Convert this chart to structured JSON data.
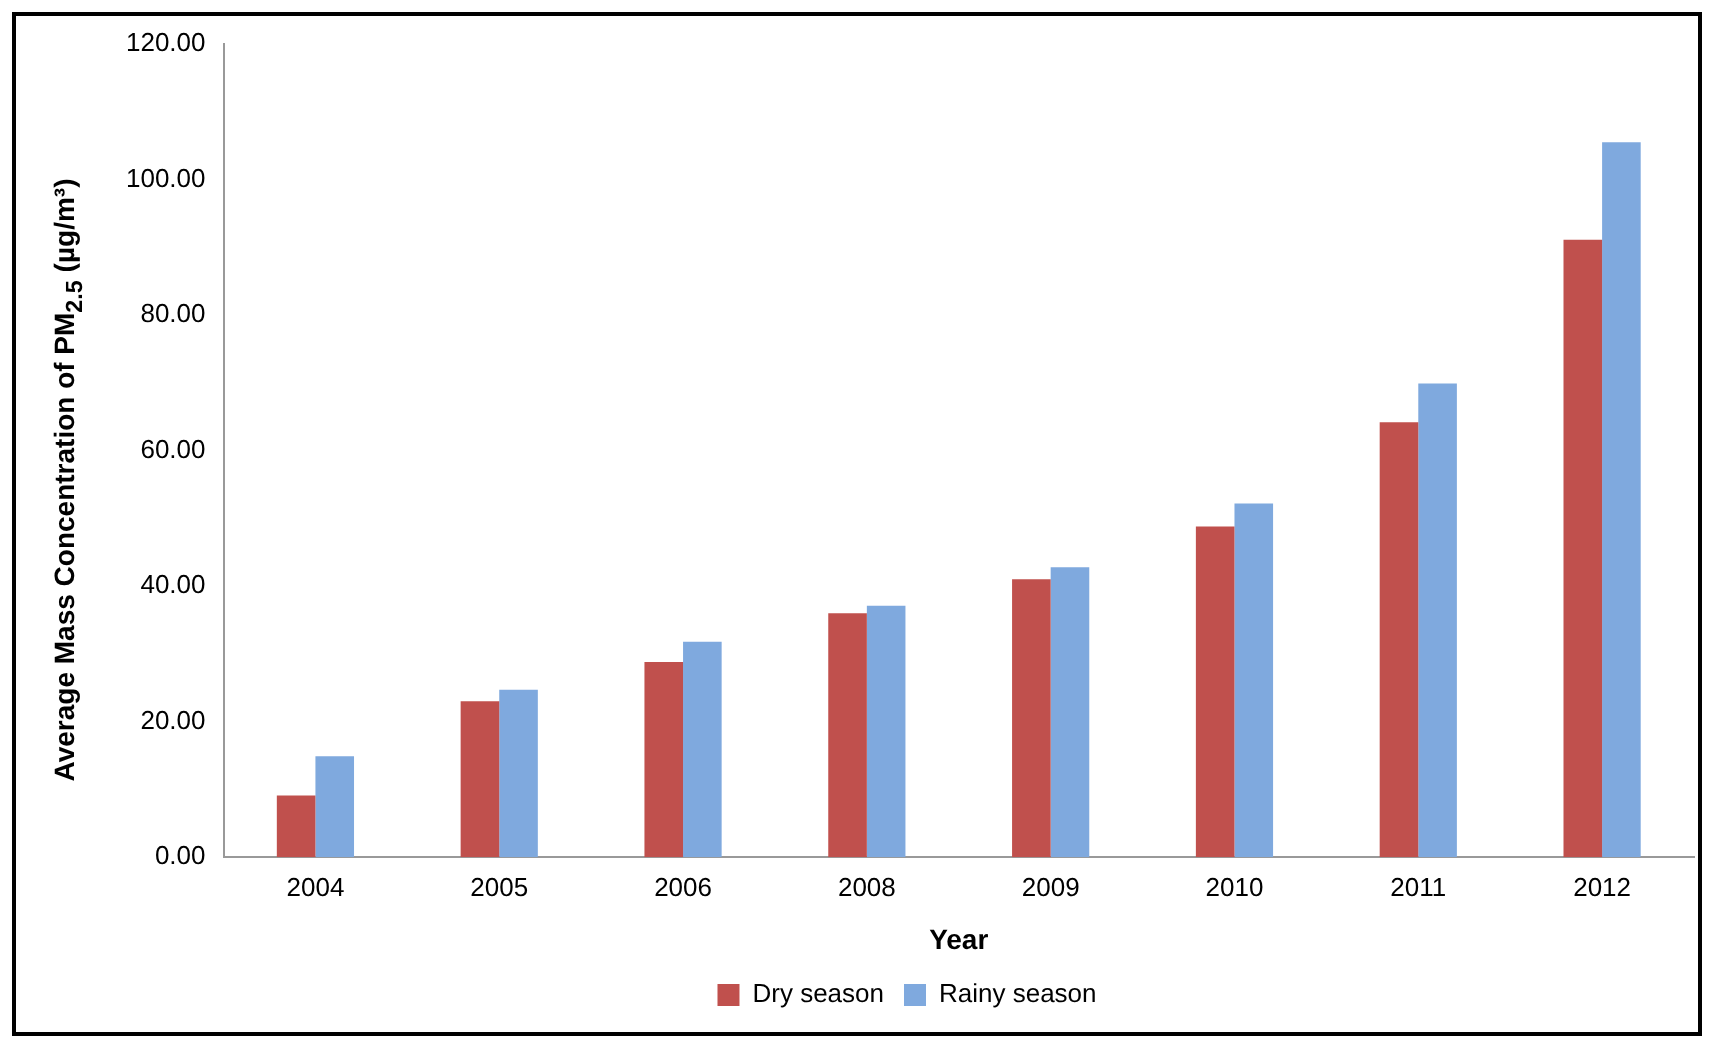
{
  "chart_data": {
    "type": "bar",
    "xlabel": "Year",
    "ylabel": "Average Mass Concentration of PM$_{2.5}$ (µg/m³)",
    "categories": [
      "2004",
      "2005",
      "2006",
      "2008",
      "2009",
      "2010",
      "2011",
      "2012"
    ],
    "series": [
      {
        "name": "Dry season",
        "color": "#c0504d",
        "values": [
          9.1,
          23.0,
          28.8,
          36.0,
          41.0,
          48.8,
          64.2,
          91.1
        ]
      },
      {
        "name": "Rainy season",
        "color": "#7fa9de",
        "values": [
          14.9,
          24.7,
          31.8,
          37.1,
          42.8,
          52.2,
          69.9,
          105.5
        ]
      }
    ],
    "ylim": [
      0,
      120
    ],
    "yticks": [
      {
        "value": 0,
        "label": "0.00"
      },
      {
        "value": 20,
        "label": "20.00"
      },
      {
        "value": 40,
        "label": "40.00"
      },
      {
        "value": 60,
        "label": "60.00"
      },
      {
        "value": 80,
        "label": "80.00"
      },
      {
        "value": 100,
        "label": "100.00"
      },
      {
        "value": 120,
        "label": "120.00"
      }
    ],
    "grid": false,
    "legend": "bottom"
  }
}
